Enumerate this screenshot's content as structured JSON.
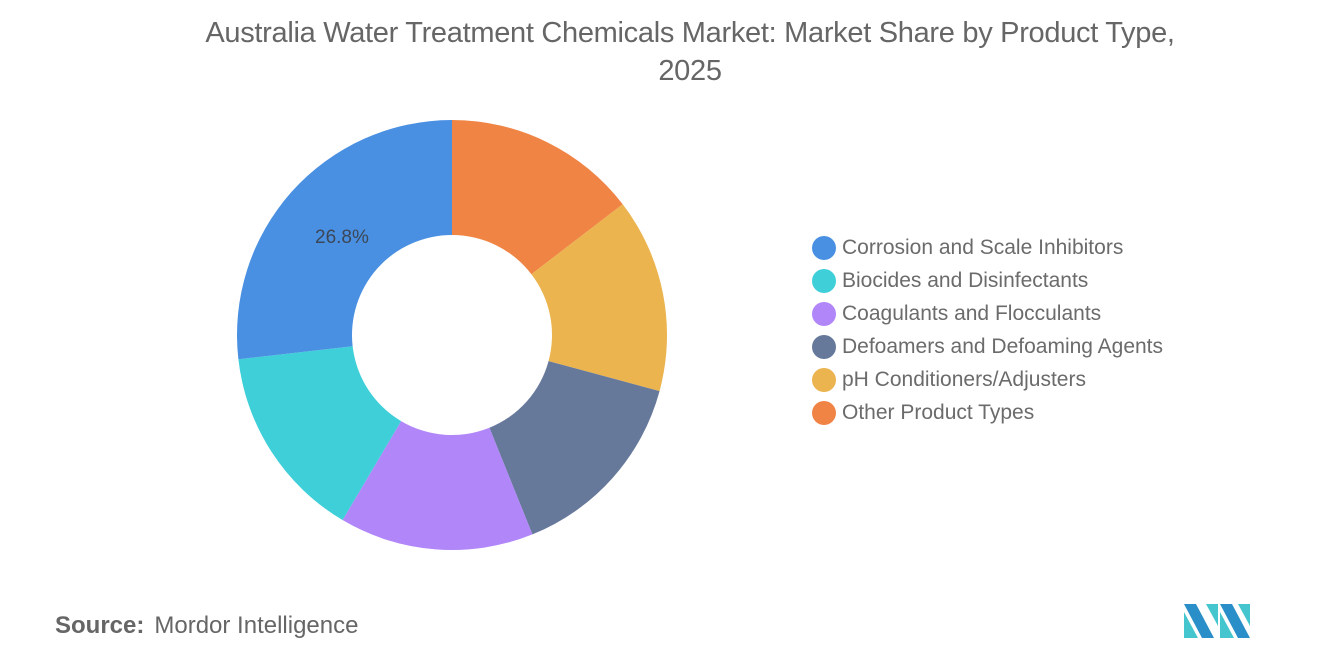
{
  "title": "Australia Water Treatment Chemicals Market: Market Share by Product Type, 2025",
  "title_lines": [
    "Australia Water Treatment Chemicals Market: Market Share by Product Type,",
    "2025"
  ],
  "chart_data": {
    "type": "pie",
    "variant": "donut",
    "title": "Australia Water Treatment Chemicals Market: Market Share by Product Type, 2025",
    "categories": [
      "Corrosion and Scale Inhibitors",
      "Biocides and Disinfectants",
      "Coagulants and Flocculants",
      "Defoamers and Defoaming Agents",
      "pH Conditioners/Adjusters",
      "Other Product Types"
    ],
    "values": [
      26.8,
      14.7,
      14.6,
      14.7,
      14.6,
      14.6
    ],
    "colors": [
      "#4a90e2",
      "#3fcfd9",
      "#b086f9",
      "#66799b",
      "#ebb44f",
      "#f08444"
    ],
    "data_labels": [
      {
        "category": "Corrosion and Scale Inhibitors",
        "text": "26.8%"
      }
    ],
    "unit": "%",
    "legend_position": "right",
    "start_angle": "12 o'clock, clockwise order: Other Product Types, pH Conditioners/Adjusters, Defoamers and Defoaming Agents, Coagulants and Flocculants, Biocides and Disinfectants, Corrosion and Scale Inhibitors"
  },
  "data_label": "26.8%",
  "legend": [
    {
      "label": "Corrosion and Scale Inhibitors",
      "color": "#4a90e2"
    },
    {
      "label": "Biocides and Disinfectants",
      "color": "#3fcfd9"
    },
    {
      "label": "Coagulants and Flocculants",
      "color": "#b086f9"
    },
    {
      "label": "Defoamers and Defoaming Agents",
      "color": "#66799b"
    },
    {
      "label": "pH Conditioners/Adjusters",
      "color": "#ebb44f"
    },
    {
      "label": "Other Product Types",
      "color": "#f08444"
    }
  ],
  "source": {
    "key": "Source:",
    "value": "Mordor Intelligence"
  },
  "logo": "mordor-intelligence-logo"
}
